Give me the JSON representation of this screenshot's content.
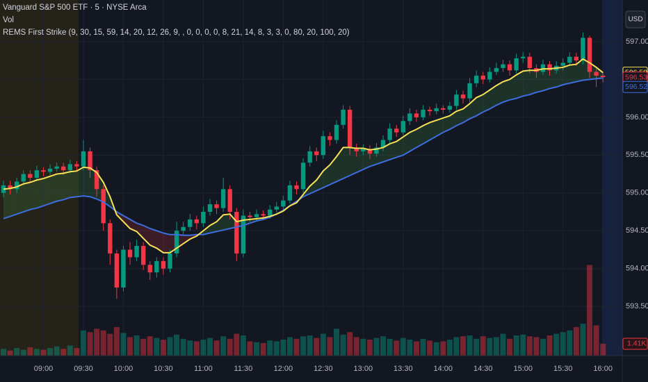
{
  "chart_data": {
    "type": "candlestick",
    "title": "Vanguard S&P 500 ETF · 5 · NYSE Arca",
    "volume_label": "Vol",
    "indicator_label": "REMS First Strike (9, 30, 15, 59, 14, 20, 12, 26, 9, , 0, 0, 0, 0, 8, 21, 14, 8, 3, 3, 0, 80, 20, 100, 20)",
    "currency": "USD",
    "categories": [
      null,
      null,
      null,
      null,
      null,
      null,
      "09:00",
      null,
      null,
      null,
      null,
      null,
      "09:30",
      null,
      null,
      null,
      null,
      null,
      "10:00",
      null,
      null,
      null,
      null,
      null,
      "10:30",
      null,
      null,
      null,
      null,
      null,
      "11:00",
      null,
      null,
      null,
      null,
      null,
      "11:30",
      null,
      null,
      null,
      null,
      null,
      "12:00",
      null,
      null,
      null,
      null,
      null,
      "12:30",
      null,
      null,
      null,
      null,
      null,
      "13:00",
      null,
      null,
      null,
      null,
      null,
      "13:30",
      null,
      null,
      null,
      null,
      null,
      "14:00",
      null,
      null,
      null,
      null,
      null,
      "14:30",
      null,
      null,
      null,
      null,
      null,
      "15:00",
      null,
      null,
      null,
      null,
      null,
      "15:30",
      null,
      null,
      null,
      null,
      null,
      "16:00"
    ],
    "open": [
      595.0,
      595.1,
      595.05,
      595.15,
      595.25,
      595.2,
      595.3,
      595.28,
      595.32,
      595.35,
      595.3,
      595.38,
      595.35,
      595.55,
      595.3,
      595.05,
      594.6,
      594.2,
      593.75,
      594.25,
      594.15,
      594.3,
      594.05,
      593.95,
      594.1,
      594.0,
      594.2,
      594.5,
      594.55,
      594.65,
      594.6,
      594.75,
      594.85,
      594.8,
      595.05,
      594.75,
      594.2,
      594.7,
      594.68,
      594.72,
      594.7,
      594.78,
      594.82,
      594.9,
      595.1,
      595.05,
      595.4,
      595.55,
      595.5,
      595.75,
      595.7,
      595.9,
      596.1,
      595.6,
      595.55,
      595.58,
      595.52,
      595.6,
      595.7,
      595.85,
      595.8,
      595.95,
      596.05,
      596.0,
      596.1,
      596.08,
      596.12,
      596.1,
      596.15,
      596.3,
      596.25,
      596.45,
      596.55,
      596.5,
      596.6,
      596.65,
      596.7,
      596.62,
      596.78,
      596.8,
      596.65,
      596.6,
      596.7,
      596.62,
      596.68,
      596.72,
      596.8,
      596.75,
      597.05,
      596.6,
      596.55
    ],
    "high": [
      595.16,
      595.16,
      595.2,
      595.3,
      595.3,
      595.36,
      595.34,
      595.38,
      595.4,
      595.4,
      595.44,
      595.42,
      595.7,
      595.6,
      595.35,
      595.1,
      594.65,
      594.25,
      594.3,
      594.35,
      594.38,
      594.35,
      594.1,
      594.15,
      594.15,
      594.25,
      594.62,
      594.62,
      594.72,
      594.7,
      594.82,
      594.92,
      594.9,
      595.2,
      595.1,
      594.8,
      594.78,
      594.75,
      594.78,
      594.77,
      594.84,
      594.88,
      594.96,
      595.16,
      595.15,
      595.46,
      595.62,
      595.6,
      595.82,
      595.8,
      595.96,
      596.16,
      596.15,
      595.65,
      595.64,
      595.63,
      595.66,
      595.76,
      595.92,
      595.9,
      596.02,
      596.12,
      596.1,
      596.16,
      596.14,
      596.18,
      596.16,
      596.2,
      596.36,
      596.35,
      596.52,
      596.62,
      596.6,
      596.66,
      596.72,
      596.76,
      596.75,
      596.84,
      596.86,
      596.85,
      596.7,
      596.76,
      596.74,
      596.74,
      596.78,
      596.86,
      596.85,
      597.12,
      597.08,
      596.64,
      596.6
    ],
    "low": [
      594.94,
      594.98,
      595.0,
      595.1,
      595.14,
      595.16,
      595.22,
      595.24,
      595.28,
      595.24,
      595.26,
      595.28,
      595.3,
      595.2,
      594.95,
      594.5,
      594.05,
      593.6,
      593.7,
      594.05,
      594.1,
      593.98,
      593.85,
      593.88,
      593.92,
      593.95,
      594.15,
      594.45,
      594.5,
      594.52,
      594.55,
      594.7,
      594.72,
      594.75,
      594.65,
      594.1,
      594.15,
      594.62,
      594.63,
      594.64,
      594.66,
      594.74,
      594.78,
      594.86,
      594.98,
      595.0,
      595.35,
      595.42,
      595.45,
      595.62,
      595.65,
      595.85,
      595.5,
      595.48,
      595.5,
      595.45,
      595.48,
      595.55,
      595.65,
      595.74,
      595.76,
      595.9,
      595.94,
      595.96,
      596.02,
      596.04,
      596.05,
      596.06,
      596.1,
      596.18,
      596.2,
      596.4,
      596.44,
      596.46,
      596.56,
      596.6,
      596.55,
      596.58,
      596.72,
      596.58,
      596.52,
      596.56,
      596.55,
      596.58,
      596.62,
      596.68,
      596.68,
      596.7,
      596.52,
      596.4,
      596.46
    ],
    "close": [
      595.1,
      595.05,
      595.15,
      595.25,
      595.2,
      595.3,
      595.28,
      595.32,
      595.35,
      595.3,
      595.38,
      595.35,
      595.55,
      595.3,
      595.05,
      594.6,
      594.2,
      593.75,
      594.25,
      594.15,
      594.3,
      594.05,
      593.95,
      594.1,
      594.0,
      594.2,
      594.5,
      594.55,
      594.65,
      594.6,
      594.75,
      594.85,
      594.8,
      595.05,
      594.75,
      594.2,
      594.7,
      594.68,
      594.72,
      594.7,
      594.78,
      594.82,
      594.9,
      595.1,
      595.05,
      595.4,
      595.55,
      595.5,
      595.75,
      595.7,
      595.9,
      596.1,
      595.6,
      595.55,
      595.58,
      595.52,
      595.6,
      595.7,
      595.85,
      595.8,
      595.95,
      596.05,
      596.0,
      596.1,
      596.08,
      596.12,
      596.1,
      596.15,
      596.3,
      596.25,
      596.45,
      596.55,
      596.5,
      596.6,
      596.65,
      596.7,
      596.62,
      596.78,
      596.8,
      596.65,
      596.6,
      596.7,
      596.62,
      596.68,
      596.72,
      596.8,
      596.75,
      597.05,
      596.6,
      596.55,
      596.53
    ],
    "close_last_label": "596.53",
    "up_color": "#089981",
    "down_color": "#f23645",
    "series": [
      {
        "color": "#f7e157",
        "last_label": "596.59",
        "values": [
          595.05,
          595.06,
          595.08,
          595.12,
          595.14,
          595.17,
          595.19,
          595.22,
          595.25,
          595.26,
          595.28,
          595.29,
          595.34,
          595.33,
          595.27,
          595.14,
          594.95,
          594.71,
          594.62,
          594.53,
          594.49,
          594.4,
          594.31,
          594.27,
          594.21,
          594.21,
          594.27,
          594.33,
          594.39,
          594.43,
          594.5,
          594.57,
          594.62,
          594.71,
          594.72,
          594.62,
          594.64,
          594.65,
          594.66,
          594.67,
          594.69,
          594.72,
          594.76,
          594.83,
          594.87,
          594.98,
          595.09,
          595.17,
          595.29,
          595.37,
          595.48,
          595.6,
          595.6,
          595.59,
          595.59,
          595.57,
          595.58,
          595.6,
          595.65,
          595.68,
          595.74,
          595.8,
          595.84,
          595.89,
          595.93,
          595.96,
          595.99,
          596.02,
          596.08,
          596.11,
          596.18,
          596.26,
          596.3,
          596.36,
          596.42,
          596.47,
          596.5,
          596.56,
          596.61,
          596.62,
          596.62,
          596.64,
          596.64,
          596.65,
          596.66,
          596.69,
          596.7,
          596.77,
          596.72,
          596.66,
          596.59
        ]
      },
      {
        "color": "#3d6ee0",
        "last_label": "596.52",
        "values": [
          594.66,
          594.69,
          594.72,
          594.75,
          594.78,
          594.8,
          594.83,
          594.86,
          594.89,
          594.91,
          594.94,
          594.95,
          594.96,
          594.95,
          594.92,
          594.88,
          594.82,
          594.75,
          594.7,
          594.65,
          594.6,
          594.57,
          594.53,
          594.5,
          594.47,
          594.45,
          594.45,
          594.44,
          594.44,
          594.45,
          594.45,
          594.47,
          594.49,
          594.51,
          594.53,
          594.55,
          594.57,
          594.6,
          594.63,
          594.65,
          594.68,
          594.72,
          594.77,
          594.83,
          594.89,
          594.95,
          594.99,
          595.03,
          595.07,
          595.11,
          595.15,
          595.19,
          595.23,
          595.27,
          595.31,
          595.35,
          595.38,
          595.41,
          595.44,
          595.47,
          595.5,
          595.55,
          595.6,
          595.65,
          595.7,
          595.75,
          595.8,
          595.84,
          595.89,
          595.93,
          595.98,
          596.02,
          596.07,
          596.11,
          596.16,
          596.2,
          596.23,
          596.25,
          596.28,
          596.3,
          596.33,
          596.35,
          596.38,
          596.4,
          596.43,
          596.45,
          596.47,
          596.49,
          596.5,
          596.51,
          596.52
        ]
      }
    ],
    "volume": [
      800,
      600,
      900,
      700,
      1000,
      800,
      700,
      900,
      1100,
      800,
      1200,
      900,
      3000,
      2800,
      3200,
      3000,
      2600,
      3400,
      2700,
      2200,
      2400,
      2000,
      2300,
      2100,
      1900,
      2200,
      2500,
      2000,
      1800,
      1700,
      1900,
      2100,
      1800,
      2300,
      2000,
      2600,
      2400,
      1700,
      1600,
      1500,
      1800,
      1700,
      1900,
      2200,
      2000,
      2300,
      2400,
      2100,
      2600,
      2200,
      3200,
      2500,
      2800,
      2200,
      2000,
      1900,
      2100,
      2300,
      2000,
      1800,
      2100,
      1900,
      1700,
      2000,
      1800,
      1600,
      1700,
      1900,
      2200,
      2300,
      2400,
      2000,
      2300,
      2100,
      2200,
      2600,
      2000,
      2400,
      2500,
      2300,
      2200,
      2000,
      2400,
      2600,
      2800,
      3000,
      3400,
      3800,
      10800,
      3600,
      1410
    ],
    "volume_last_label": "1.41K",
    "vlim": [
      0,
      12000
    ],
    "ylim": [
      592.85,
      597.55
    ],
    "yticks": [
      {
        "value": 593.5,
        "label": "593.50"
      },
      {
        "value": 594,
        "label": "594.00"
      },
      {
        "value": 594.5,
        "label": "594.50"
      },
      {
        "value": 595,
        "label": "595.00"
      },
      {
        "value": 595.5,
        "label": "595.50"
      },
      {
        "value": 596,
        "label": "596.00"
      },
      {
        "value": 596.5,
        "label": "596.50"
      },
      {
        "value": 597,
        "label": "597.00"
      }
    ],
    "grid": true
  }
}
